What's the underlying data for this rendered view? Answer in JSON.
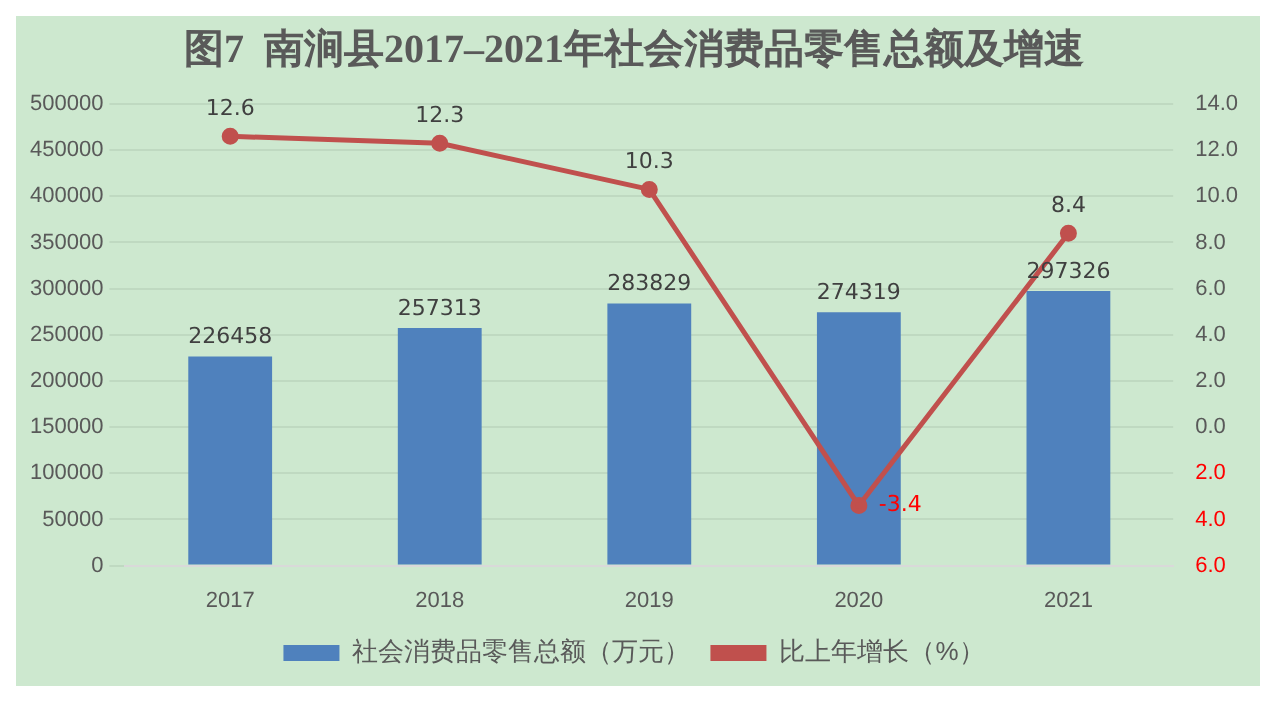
{
  "chart_data": {
    "type": "bar",
    "title": "图7  南涧县2017–2021年社会消费品零售总额及增速",
    "categories": [
      "2017",
      "2018",
      "2019",
      "2020",
      "2021"
    ],
    "series": [
      {
        "name": "社会消费品零售总额（万元）",
        "color": "#4f81bd",
        "values": [
          226458,
          257313,
          283829,
          274319,
          297326
        ]
      },
      {
        "name": "比上年增长（%）",
        "type": "line",
        "axis": "y2",
        "color": "#c0504d",
        "marker": "circle",
        "values": [
          12.6,
          12.3,
          10.3,
          -3.4,
          8.4
        ]
      }
    ],
    "ylim": [
      0,
      500000
    ],
    "yticks": [
      0,
      50000,
      100000,
      150000,
      200000,
      250000,
      300000,
      350000,
      400000,
      450000,
      500000
    ],
    "y2lim": [
      -6,
      14
    ],
    "y2ticks": [
      {
        "value": -6,
        "label": "6.0"
      },
      {
        "value": -4,
        "label": "4.0"
      },
      {
        "value": -2,
        "label": "2.0"
      },
      {
        "value": 0,
        "label": "0.0"
      },
      {
        "value": 2,
        "label": "2.0"
      },
      {
        "value": 4,
        "label": "4.0"
      },
      {
        "value": 6,
        "label": "6.0"
      },
      {
        "value": 8,
        "label": "8.0"
      },
      {
        "value": 10,
        "label": "10.0"
      },
      {
        "value": 12,
        "label": "12.0"
      },
      {
        "value": 14,
        "label": "14.0"
      }
    ],
    "data_labels": true,
    "grid": "y",
    "legend": "bottom"
  }
}
